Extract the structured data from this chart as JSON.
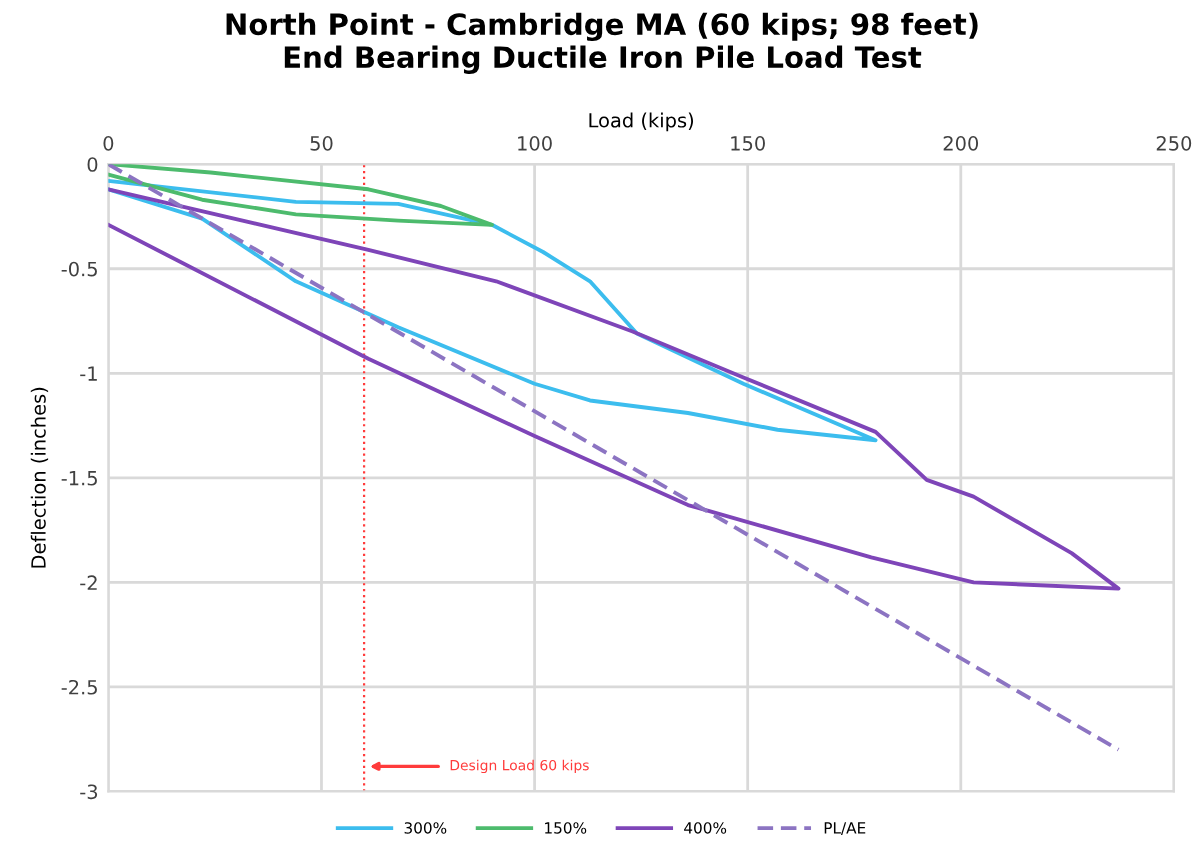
{
  "chart_data": {
    "type": "line",
    "title": "North Point - Cambridge MA (60 kips; 98 feet)\nEnd Bearing Ductile Iron Pile Load Test",
    "xlabel": "Load (kips)",
    "ylabel": "Deflection (inches)",
    "xlim": [
      0,
      250
    ],
    "xticks": [
      0,
      50,
      100,
      150,
      200,
      250
    ],
    "ylim": [
      -3,
      0
    ],
    "yticks": [
      {
        "value": -3,
        "label": "-3"
      },
      {
        "value": -2.5,
        "label": "-2.5"
      },
      {
        "value": -2,
        "label": "-2"
      },
      {
        "value": -1.5,
        "label": "-1.5"
      },
      {
        "value": -1,
        "label": "-1"
      },
      {
        "value": -0.5,
        "label": "-0.5"
      },
      0
    ],
    "grid": true,
    "legend": "bottom",
    "series": [
      {
        "name": "300%",
        "color": "#3cbdee",
        "x": [
          0,
          44,
          68,
          90,
          102,
          113,
          124,
          149,
          180,
          157,
          136,
          113,
          100,
          68,
          44,
          22,
          0
        ],
        "values": [
          -0.08,
          -0.18,
          -0.19,
          -0.29,
          -0.42,
          -0.56,
          -0.81,
          -1.05,
          -1.32,
          -1.27,
          -1.19,
          -1.13,
          -1.05,
          -0.78,
          -0.56,
          -0.26,
          -0.12
        ]
      },
      {
        "name": "150%",
        "color": "#4dbb6d",
        "x": [
          0,
          24,
          61,
          78,
          90,
          68,
          44,
          22,
          0
        ],
        "values": [
          0,
          -0.04,
          -0.12,
          -0.2,
          -0.29,
          -0.27,
          -0.24,
          -0.17,
          -0.05
        ]
      },
      {
        "name": "400%",
        "color": "#7e45b8",
        "x": [
          0,
          61,
          91,
          123,
          149,
          180,
          192,
          203,
          226,
          237,
          203,
          179,
          136,
          100,
          61,
          0
        ],
        "values": [
          -0.12,
          -0.41,
          -0.56,
          -0.8,
          -1.02,
          -1.28,
          -1.51,
          -1.59,
          -1.86,
          -2.03,
          -2.0,
          -1.88,
          -1.63,
          -1.3,
          -0.93,
          -0.29
        ]
      },
      {
        "name": "PL/AE",
        "color": "#8c74c2",
        "line_style": "dashed",
        "x": [
          0,
          237
        ],
        "values": [
          0,
          -2.8
        ]
      }
    ],
    "ref_lines": [
      {
        "axis": "x",
        "value": 60,
        "label": "Design Load 60 kips",
        "color": "#ff3b3b",
        "line_style": "dotted"
      }
    ]
  }
}
